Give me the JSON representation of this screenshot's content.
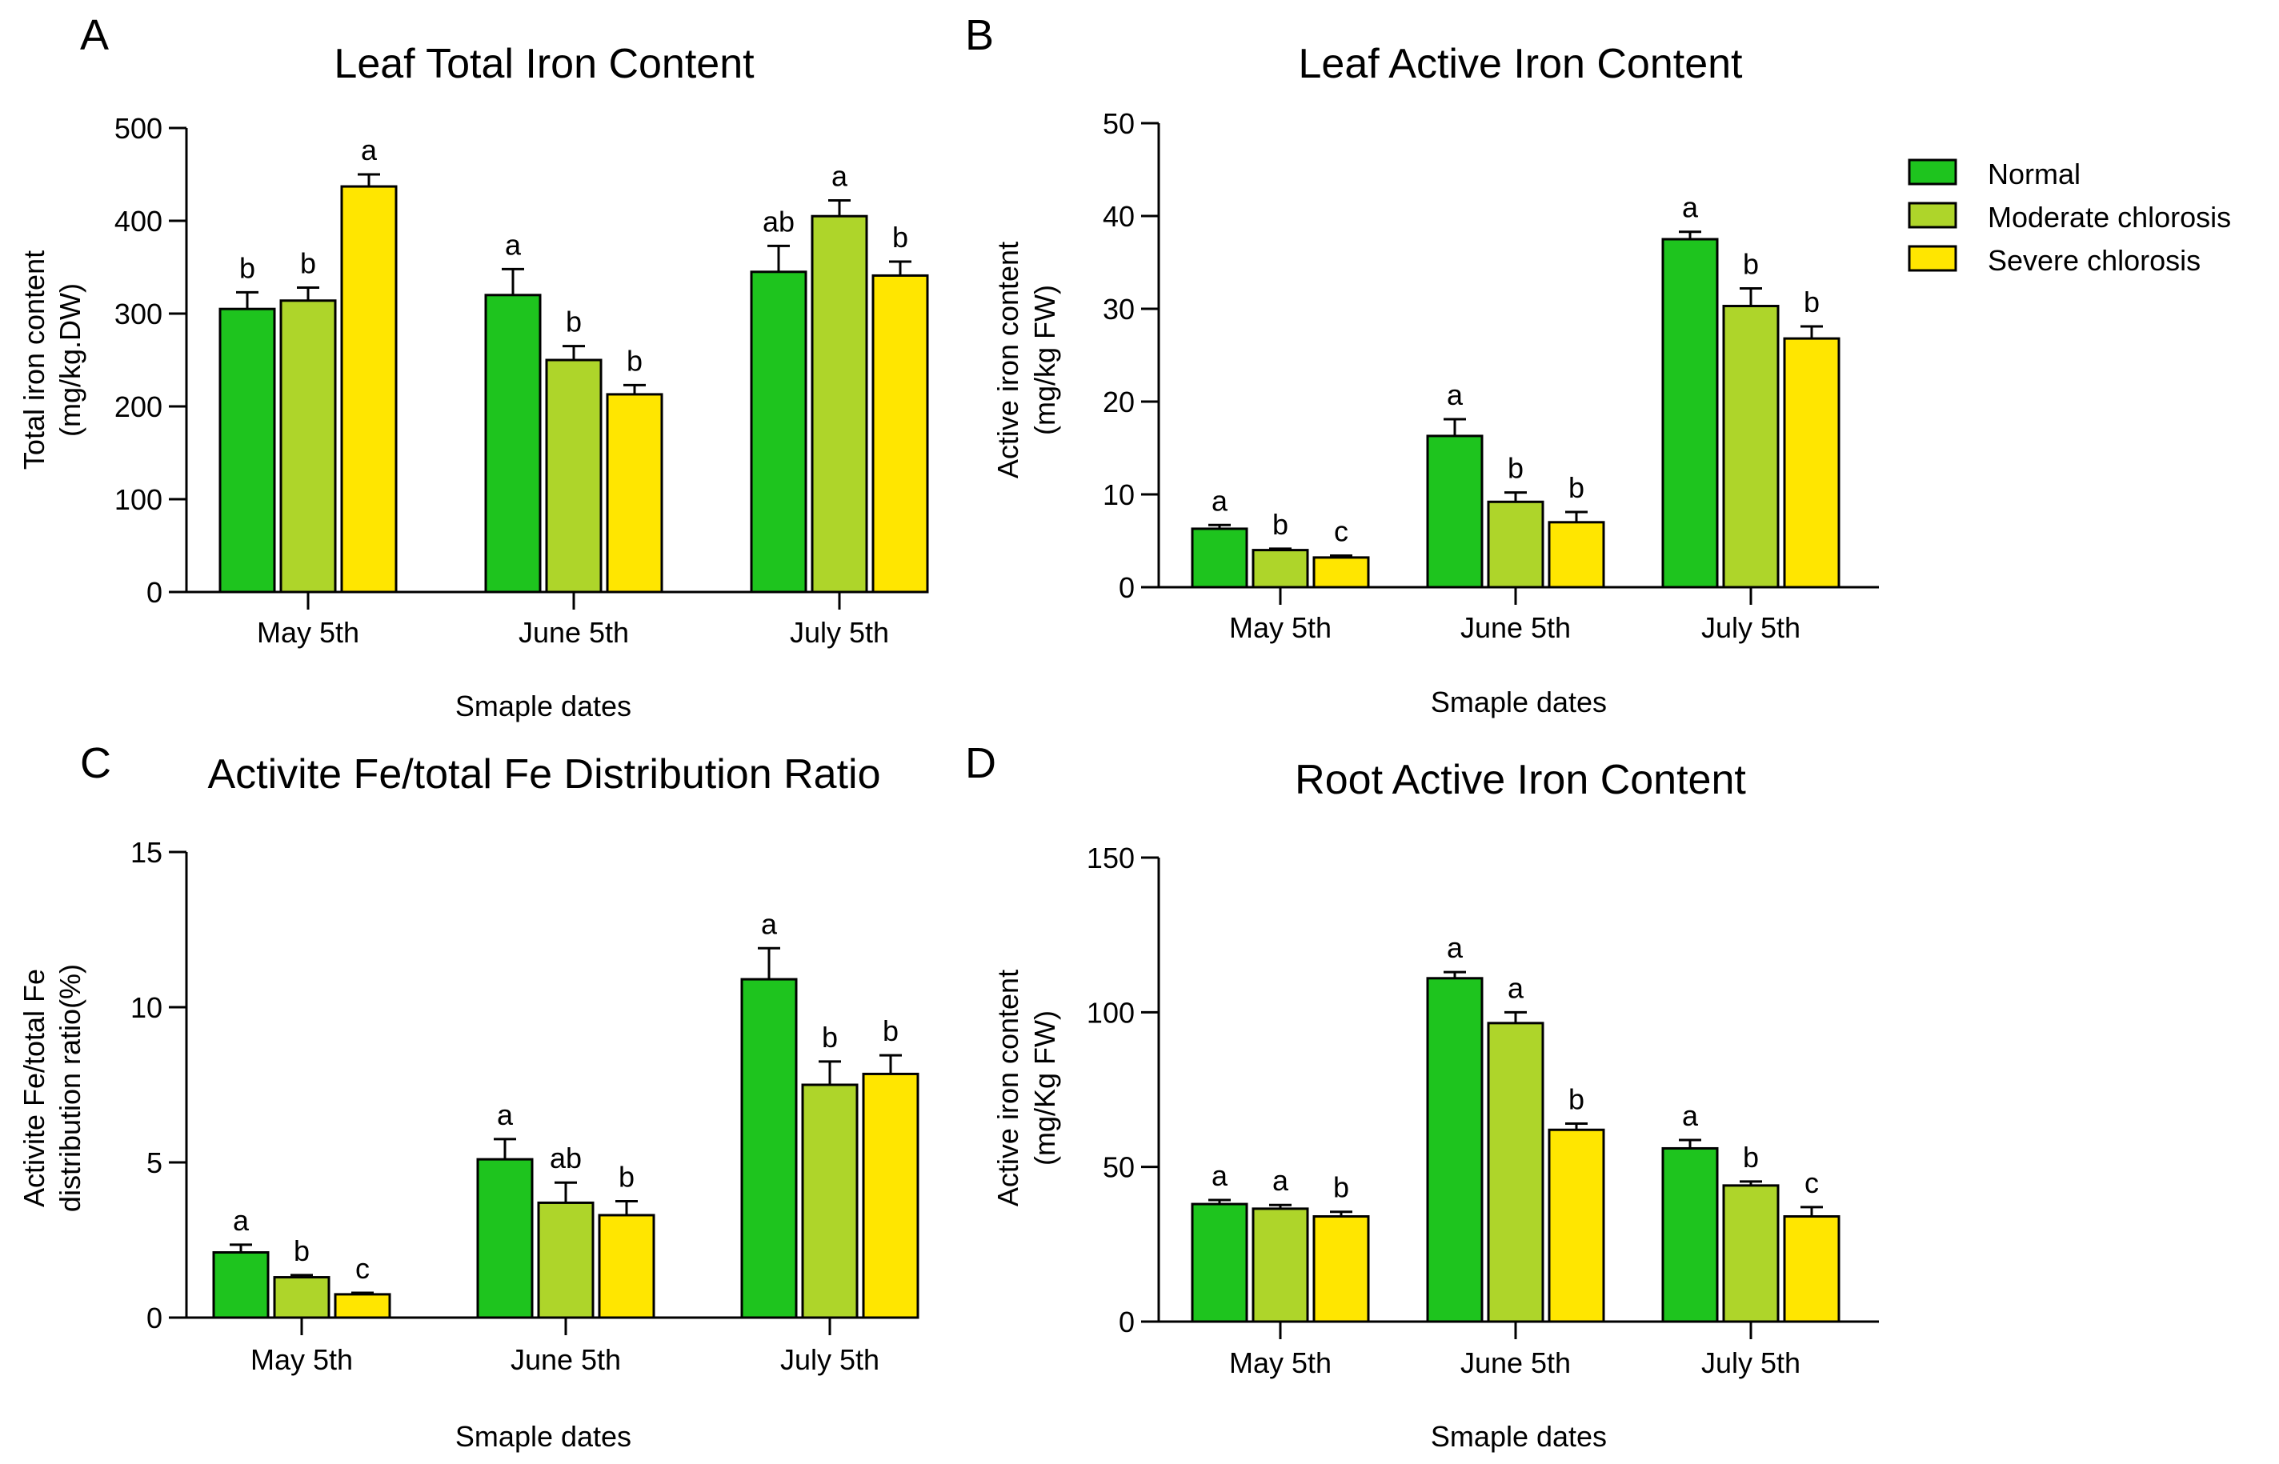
{
  "chart_data": [
    {
      "type": "bar",
      "panel": "A",
      "title": "Leaf Total Iron Content",
      "xlabel": "Smaple dates",
      "ylabel": [
        "Total iron content",
        "(mg/kg.DW)"
      ],
      "ylim": [
        0,
        500
      ],
      "yticks": [
        0,
        100,
        200,
        300,
        400,
        500
      ],
      "categories": [
        "May 5th",
        "June 5th",
        "July 5th"
      ],
      "series": [
        {
          "name": "Normal",
          "values": [
            305,
            320,
            345
          ],
          "errors": [
            18,
            28,
            28
          ],
          "letters": [
            "b",
            "a",
            "ab"
          ]
        },
        {
          "name": "Moderate chlorosis",
          "values": [
            314,
            250,
            405
          ],
          "errors": [
            14,
            15,
            17
          ],
          "letters": [
            "b",
            "b",
            "a"
          ]
        },
        {
          "name": "Severe chlorosis",
          "values": [
            437,
            213,
            341
          ],
          "errors": [
            13,
            10,
            15
          ],
          "letters": [
            "a",
            "b",
            "b"
          ]
        }
      ]
    },
    {
      "type": "bar",
      "panel": "B",
      "title": "Leaf Active Iron Content",
      "xlabel": "Smaple dates",
      "ylabel": [
        "Active iron content",
        "(mg/kg  FW)"
      ],
      "ylim": [
        0,
        50
      ],
      "yticks": [
        0,
        10,
        20,
        30,
        40,
        50
      ],
      "categories": [
        "May 5th",
        "June 5th",
        "July 5th"
      ],
      "series": [
        {
          "name": "Normal",
          "values": [
            6.3,
            16.3,
            37.5
          ],
          "errors": [
            0.4,
            1.8,
            0.8
          ],
          "letters": [
            "a",
            "a",
            "a"
          ]
        },
        {
          "name": "Moderate chlorosis",
          "values": [
            4.0,
            9.2,
            30.3
          ],
          "errors": [
            0.15,
            1.0,
            1.9
          ],
          "letters": [
            "b",
            "b",
            "b"
          ]
        },
        {
          "name": "Severe chlorosis",
          "values": [
            3.2,
            7.0,
            26.8
          ],
          "errors": [
            0.2,
            1.1,
            1.3
          ],
          "letters": [
            "c",
            "b",
            "b"
          ]
        }
      ]
    },
    {
      "type": "bar",
      "panel": "C",
      "title": "Activite Fe/total Fe Distribution Ratio",
      "xlabel": "Smaple dates",
      "ylabel": [
        "Activite Fe/total Fe",
        "distribution ratio(%)"
      ],
      "ylim": [
        0,
        15
      ],
      "yticks": [
        0,
        5,
        10,
        15
      ],
      "categories": [
        "May 5th",
        "June 5th",
        "July 5th"
      ],
      "series": [
        {
          "name": "Normal",
          "values": [
            2.1,
            5.1,
            10.9
          ],
          "errors": [
            0.25,
            0.65,
            1.0
          ],
          "letters": [
            "a",
            "a",
            "a"
          ]
        },
        {
          "name": "Moderate chlorosis",
          "values": [
            1.3,
            3.7,
            7.5
          ],
          "errors": [
            0.07,
            0.65,
            0.75
          ],
          "letters": [
            "b",
            "ab",
            "b"
          ]
        },
        {
          "name": "Severe chlorosis",
          "values": [
            0.75,
            3.3,
            7.85
          ],
          "errors": [
            0.05,
            0.45,
            0.6
          ],
          "letters": [
            "c",
            "b",
            "b"
          ]
        }
      ]
    },
    {
      "type": "bar",
      "panel": "D",
      "title": "Root Active Iron Content",
      "xlabel": "Smaple dates",
      "ylabel": [
        "Active iron content",
        "(mg/Kg  FW)"
      ],
      "ylim": [
        0,
        150
      ],
      "yticks": [
        0,
        50,
        100,
        150
      ],
      "categories": [
        "May 5th",
        "June 5th",
        "July 5th"
      ],
      "series": [
        {
          "name": "Normal",
          "values": [
            38,
            111,
            56
          ],
          "errors": [
            1.3,
            2.0,
            2.7
          ],
          "letters": [
            "a",
            "a",
            "a"
          ]
        },
        {
          "name": "Moderate chlorosis",
          "values": [
            36.5,
            96.5,
            44
          ],
          "errors": [
            1.2,
            3.5,
            1.3
          ],
          "letters": [
            "a",
            "a",
            "b"
          ]
        },
        {
          "name": "Severe chlorosis",
          "values": [
            34,
            62,
            34
          ],
          "errors": [
            1.5,
            2.0,
            3.0
          ],
          "letters": [
            "b",
            "b",
            "c"
          ]
        }
      ]
    }
  ],
  "legend": {
    "items": [
      {
        "label": "Normal",
        "color": "#1ec41e"
      },
      {
        "label": "Moderate chlorosis",
        "color": "#aed52a"
      },
      {
        "label": "Severe chlorosis",
        "color": "#ffe600"
      }
    ]
  }
}
